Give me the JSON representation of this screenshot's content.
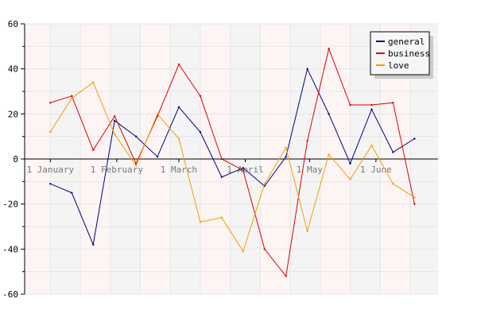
{
  "chart_data": {
    "type": "line",
    "title": "",
    "xlabel": "",
    "ylabel": "",
    "ylim": [
      -60,
      60
    ],
    "yticks": [
      -60,
      -40,
      -20,
      0,
      20,
      40,
      60
    ],
    "xlim": [
      "2007-12-20",
      "2008-06-30"
    ],
    "x_tick_labels": [
      {
        "date": "2008-01-01",
        "label": "1 January"
      },
      {
        "date": "2008-02-01",
        "label": "1 February"
      },
      {
        "date": "2008-03-01",
        "label": "1 March"
      },
      {
        "date": "2008-04-01",
        "label": "1 April"
      },
      {
        "date": "2008-05-01",
        "label": "1 May"
      },
      {
        "date": "2008-06-01",
        "label": "1 June"
      }
    ],
    "x": [
      "2008-01-01",
      "2008-01-11",
      "2008-01-21",
      "2008-01-31",
      "2008-02-10",
      "2008-02-20",
      "2008-03-01",
      "2008-03-11",
      "2008-03-21",
      "2008-03-31",
      "2008-04-10",
      "2008-04-20",
      "2008-04-30",
      "2008-05-10",
      "2008-05-20",
      "2008-05-30",
      "2008-06-09",
      "2008-06-19"
    ],
    "series": [
      {
        "name": "general",
        "color": "#000080",
        "values": [
          -11,
          -15,
          -38,
          17,
          10,
          1,
          23,
          12,
          -8,
          -4,
          -12,
          1,
          40,
          20,
          -2,
          22,
          3,
          9
        ]
      },
      {
        "name": "business",
        "color": "#dd0000",
        "values": [
          25,
          28,
          4,
          19,
          -2,
          19,
          42,
          28,
          0,
          -5,
          -40,
          -52,
          8,
          49,
          24,
          24,
          25,
          -20
        ]
      },
      {
        "name": "love",
        "color": "#f0a000",
        "values": [
          12,
          27,
          34,
          11,
          -3,
          20,
          9,
          -28,
          -26,
          -41,
          -11,
          5,
          -32,
          2,
          -9,
          6,
          -11,
          -17
        ]
      }
    ],
    "grid": true,
    "legend": "top-right",
    "background_stripes": [
      "#fdf4f4",
      "#f4f4f4"
    ]
  }
}
